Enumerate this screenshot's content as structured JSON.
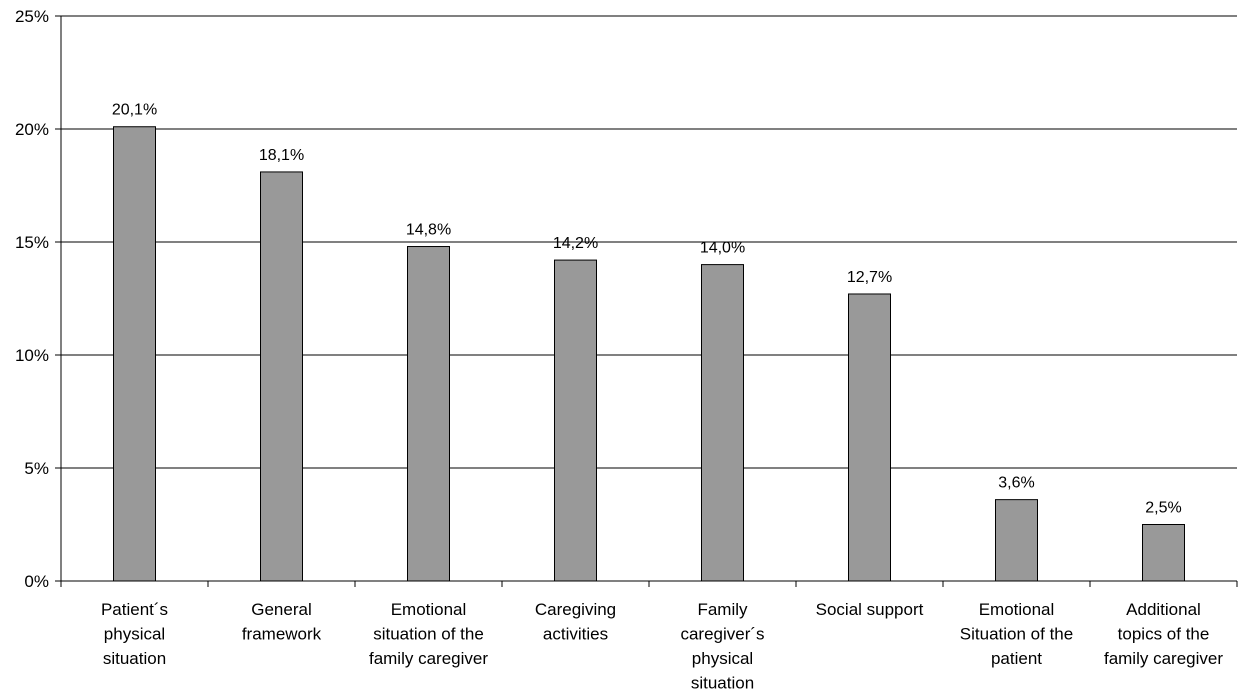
{
  "chart_data": {
    "type": "bar",
    "title": "",
    "xlabel": "",
    "ylabel": "",
    "ylim": [
      0,
      25
    ],
    "yticks": [
      "0%",
      "5%",
      "10%",
      "15%",
      "20%",
      "25%"
    ],
    "ytick_values": [
      0,
      5,
      10,
      15,
      20,
      25
    ],
    "grid": "horizontal",
    "categories": [
      [
        "Patient´s",
        "physical",
        "situation"
      ],
      [
        "General",
        "framework"
      ],
      [
        "Emotional",
        "situation of the",
        "family caregiver"
      ],
      [
        "Caregiving",
        "activities"
      ],
      [
        "Family",
        "caregiver´s",
        "physical",
        "situation"
      ],
      [
        "Social support"
      ],
      [
        "Emotional",
        "Situation of the",
        "patient"
      ],
      [
        "Additional",
        "topics of the",
        "family caregiver"
      ]
    ],
    "values": [
      20.1,
      18.1,
      14.8,
      14.2,
      14.0,
      12.7,
      3.6,
      2.5
    ],
    "data_labels": [
      "20,1%",
      "18,1%",
      "14,8%",
      "14,2%",
      "14,0%",
      "12,7%",
      "3,6%",
      "2,5%"
    ],
    "bar_color": "#999999",
    "bar_edge_color": "#000000",
    "grid_color": "#000000"
  }
}
